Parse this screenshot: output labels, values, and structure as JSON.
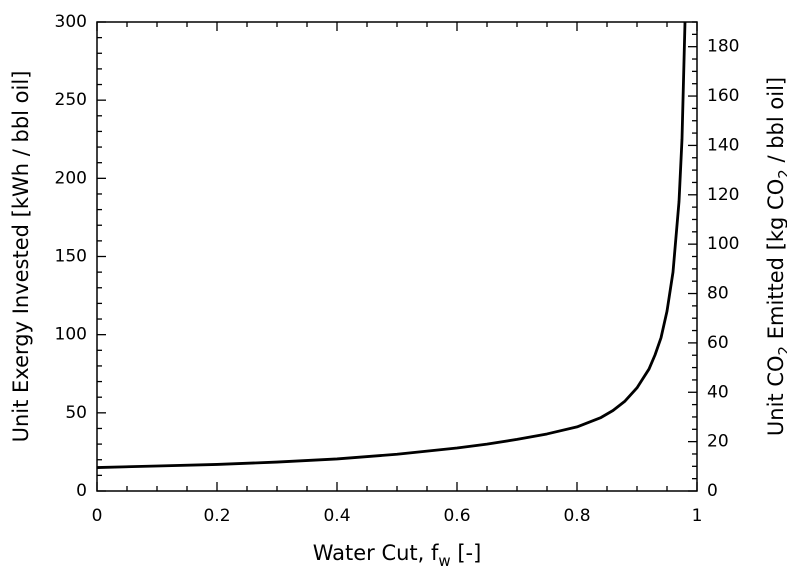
{
  "chart_data": {
    "type": "line",
    "xlabel": {
      "main": "Water Cut, f",
      "sub": "w",
      "unit": " [-]"
    },
    "ylabel": "Unit Exergy Invested  [kWh / bbl oil]",
    "y2label": {
      "pre": "Unit CO",
      "sub": "2",
      "post": " Emitted  [kg CO",
      "sub2": "2",
      "post2": " / bbl oil]"
    },
    "xlim": [
      0,
      1
    ],
    "ylim": [
      0,
      300
    ],
    "y2lim": [
      0,
      190
    ],
    "x_ticks": [
      "0",
      "0.2",
      "0.4",
      "0.6",
      "0.8",
      "1"
    ],
    "y_ticks": [
      "0",
      "50",
      "100",
      "150",
      "200",
      "250",
      "300"
    ],
    "y2_ticks": [
      "0",
      "20",
      "40",
      "60",
      "80",
      "100",
      "120",
      "140",
      "160",
      "180"
    ],
    "grid": false,
    "series": [
      {
        "x": [
          0,
          0.1,
          0.2,
          0.3,
          0.4,
          0.5,
          0.6,
          0.65,
          0.7,
          0.75,
          0.8,
          0.84,
          0.86,
          0.88,
          0.9,
          0.92,
          0.93,
          0.94,
          0.95,
          0.96,
          0.97,
          0.975,
          0.98
        ],
        "y": [
          15,
          16,
          17,
          18.5,
          20.5,
          23.5,
          27.5,
          30,
          33,
          36.5,
          41,
          47,
          51.5,
          57.5,
          66,
          78,
          87,
          98,
          115,
          140,
          185,
          225,
          300
        ]
      }
    ]
  }
}
